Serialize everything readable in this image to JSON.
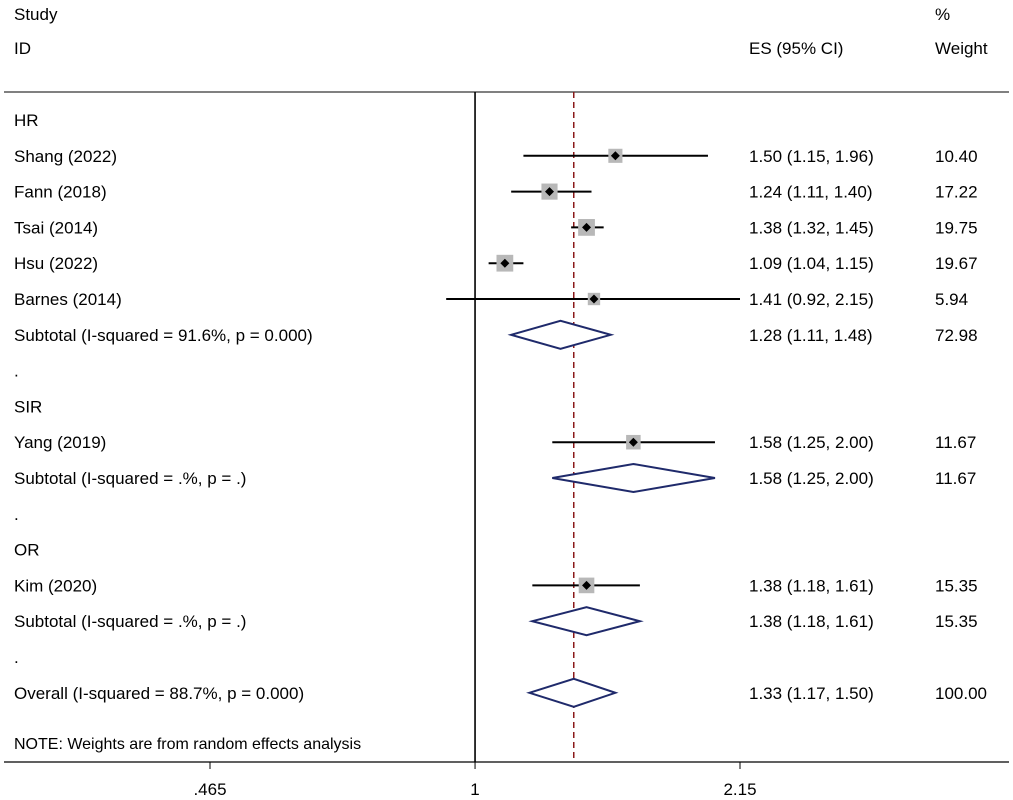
{
  "header": {
    "study": "Study",
    "id": "ID",
    "es_ci": "ES (95% CI)",
    "pct": "%",
    "weight": "Weight"
  },
  "note": "NOTE: Weights are from random effects analysis",
  "colors": {
    "ci_line": "#000000",
    "box": "#b8b8b8",
    "diamond": "#1f2a6b",
    "overall_line": "#8b1a1a"
  },
  "chart_data": {
    "type": "forest",
    "scale": "log",
    "xlim": [
      0.465,
      2.15
    ],
    "ticks": [
      {
        "value": 0.465,
        "label": ".465"
      },
      {
        "value": 1,
        "label": "1"
      },
      {
        "value": 2.15,
        "label": "2.15"
      }
    ],
    "null_line": 1,
    "overall_effect": 1.33,
    "rows": [
      {
        "kind": "group",
        "label": "HR"
      },
      {
        "kind": "study",
        "label": "Shang (2022)",
        "es": 1.5,
        "lo": 1.15,
        "hi": 1.96,
        "ci_text": "1.50 (1.15, 1.96)",
        "weight": "10.40"
      },
      {
        "kind": "study",
        "label": "Fann (2018)",
        "es": 1.24,
        "lo": 1.11,
        "hi": 1.4,
        "ci_text": "1.24 (1.11, 1.40)",
        "weight": "17.22"
      },
      {
        "kind": "study",
        "label": "Tsai (2014)",
        "es": 1.38,
        "lo": 1.32,
        "hi": 1.45,
        "ci_text": "1.38 (1.32, 1.45)",
        "weight": "19.75"
      },
      {
        "kind": "study",
        "label": "Hsu (2022)",
        "es": 1.09,
        "lo": 1.04,
        "hi": 1.15,
        "ci_text": "1.09 (1.04, 1.15)",
        "weight": "19.67"
      },
      {
        "kind": "study",
        "label": "Barnes (2014)",
        "es": 1.41,
        "lo": 0.92,
        "hi": 2.15,
        "ci_text": "1.41 (0.92, 2.15)",
        "weight": "5.94"
      },
      {
        "kind": "subtotal",
        "label": "Subtotal  (I-squared = 91.6%, p = 0.000)",
        "es": 1.28,
        "lo": 1.11,
        "hi": 1.48,
        "ci_text": "1.28 (1.11, 1.48)",
        "weight": "72.98"
      },
      {
        "kind": "blank",
        "label": "."
      },
      {
        "kind": "group",
        "label": "SIR"
      },
      {
        "kind": "study",
        "label": "Yang (2019)",
        "es": 1.58,
        "lo": 1.25,
        "hi": 2.0,
        "ci_text": "1.58 (1.25, 2.00)",
        "weight": "11.67"
      },
      {
        "kind": "subtotal",
        "label": "Subtotal  (I-squared = .%, p = .)",
        "es": 1.58,
        "lo": 1.25,
        "hi": 2.0,
        "ci_text": "1.58 (1.25, 2.00)",
        "weight": "11.67"
      },
      {
        "kind": "blank",
        "label": "."
      },
      {
        "kind": "group",
        "label": "OR"
      },
      {
        "kind": "study",
        "label": "Kim (2020)",
        "es": 1.38,
        "lo": 1.18,
        "hi": 1.61,
        "ci_text": "1.38 (1.18, 1.61)",
        "weight": "15.35"
      },
      {
        "kind": "subtotal",
        "label": "Subtotal  (I-squared = .%, p = .)",
        "es": 1.38,
        "lo": 1.18,
        "hi": 1.61,
        "ci_text": "1.38 (1.18, 1.61)",
        "weight": "15.35"
      },
      {
        "kind": "blank",
        "label": "."
      },
      {
        "kind": "overall",
        "label": "Overall  (I-squared = 88.7%, p = 0.000)",
        "es": 1.33,
        "lo": 1.17,
        "hi": 1.5,
        "ci_text": "1.33 (1.17, 1.50)",
        "weight": "100.00"
      }
    ]
  }
}
